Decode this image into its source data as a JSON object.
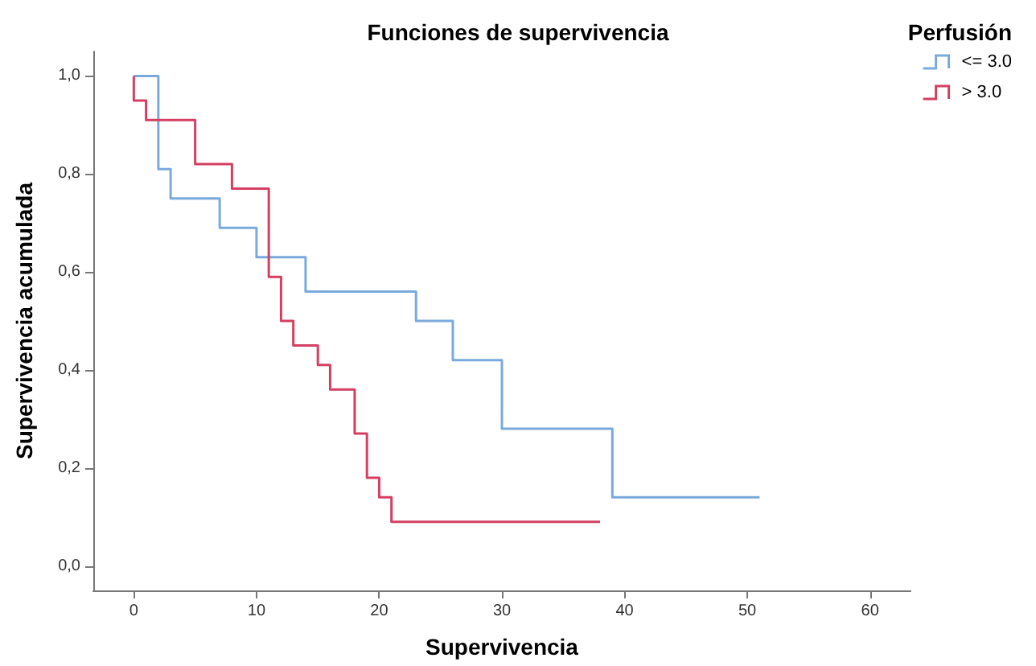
{
  "chart_data": {
    "type": "step",
    "title": "Funciones de supervivencia",
    "xlabel": "Supervivencia",
    "ylabel": "Supervivencia acumulada",
    "legend_title": "Perfusión",
    "legend": "top right",
    "grid": false,
    "marker": "none",
    "line_style": "solid",
    "xlim": [
      -3.3,
      63.3
    ],
    "xticks": [
      0,
      10,
      20,
      30,
      40,
      50,
      60
    ],
    "ylim": [
      -0.05,
      1.05
    ],
    "yticks": [
      {
        "value": 0,
        "label": "0,0"
      },
      {
        "value": 0.2,
        "label": "0,2"
      },
      {
        "value": 0.4,
        "label": "0,4"
      },
      {
        "value": 0.6,
        "label": "0,6"
      },
      {
        "value": 0.8,
        "label": "0,8"
      },
      {
        "value": 1,
        "label": "1,0"
      }
    ],
    "series": [
      {
        "name": "<= 3.0",
        "color": "#7aaadc",
        "x": [
          0,
          2,
          3,
          7,
          10,
          14,
          23,
          26,
          30,
          39,
          51
        ],
        "values": [
          1.0,
          0.81,
          0.75,
          0.69,
          0.63,
          0.56,
          0.5,
          0.42,
          0.28,
          0.14,
          0.14
        ]
      },
      {
        "name": "> 3.0",
        "color": "#d43f63",
        "x": [
          0,
          0,
          1,
          5,
          8,
          11,
          12,
          13,
          15,
          16,
          18,
          19,
          20,
          21,
          38
        ],
        "values": [
          1.0,
          0.95,
          0.91,
          0.82,
          0.77,
          0.59,
          0.5,
          0.45,
          0.41,
          0.36,
          0.27,
          0.18,
          0.14,
          0.09,
          0.09
        ]
      }
    ]
  }
}
